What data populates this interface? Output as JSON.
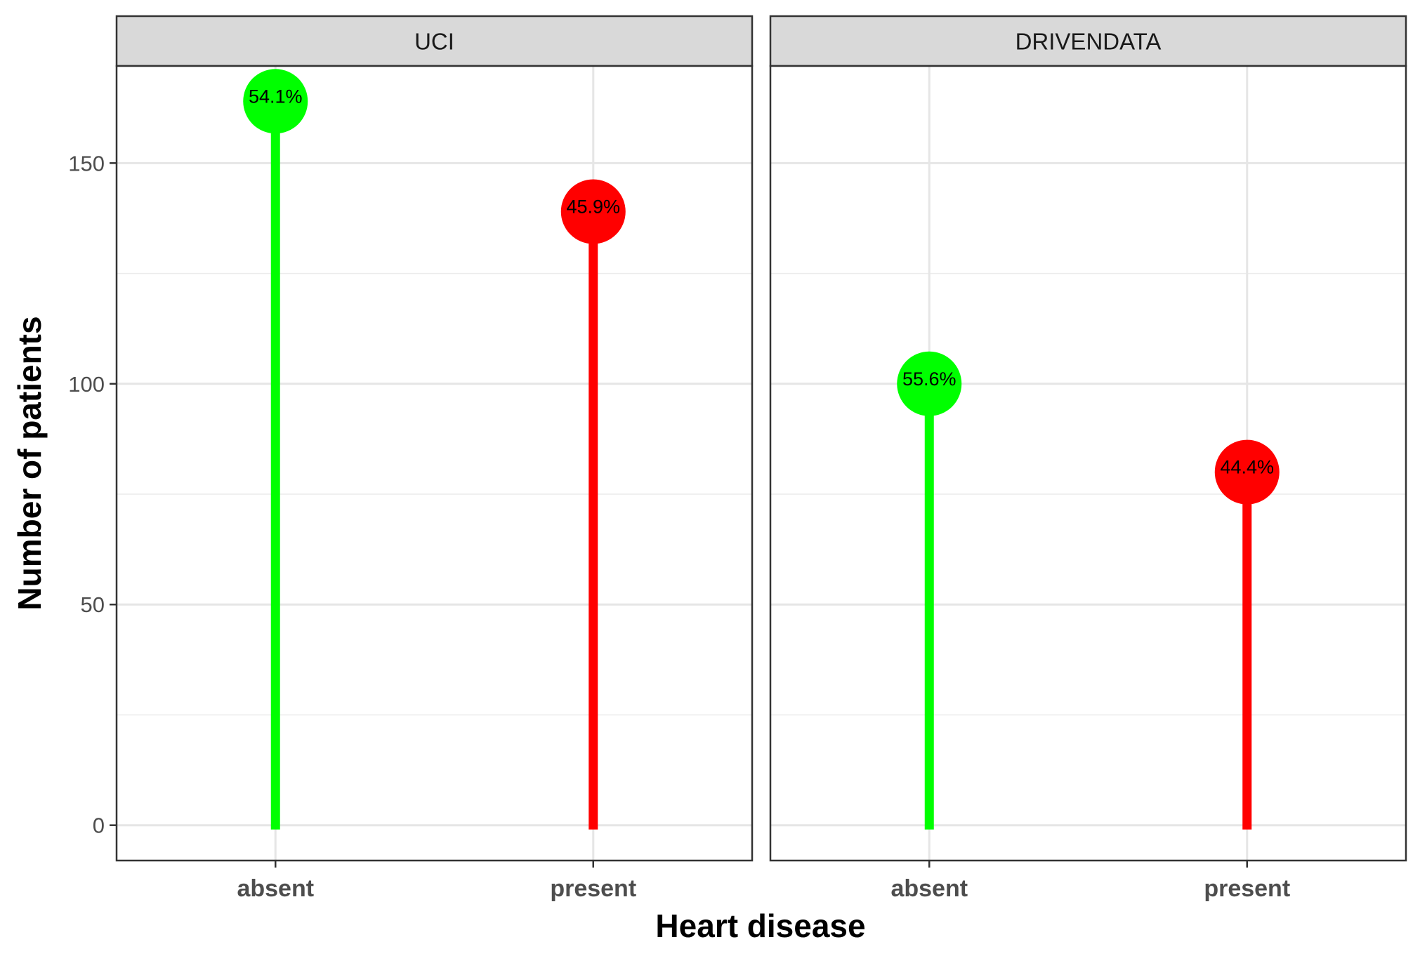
{
  "chart_data": {
    "type": "lollipop",
    "xlabel": "Heart disease",
    "ylabel": "Number of patients",
    "categories": [
      "absent",
      "present"
    ],
    "ylim": [
      -8,
      172
    ],
    "yticks": [
      0,
      50,
      100,
      150
    ],
    "grid": true,
    "colors": {
      "absent": "#00ff00",
      "present": "#ff0000"
    },
    "panels": [
      {
        "name": "UCI",
        "values": [
          164,
          139
        ],
        "labels": [
          "54.1%",
          "45.9%"
        ]
      },
      {
        "name": "DRIVENDATA",
        "values": [
          100,
          80
        ],
        "labels": [
          "55.6%",
          "44.4%"
        ]
      }
    ]
  }
}
